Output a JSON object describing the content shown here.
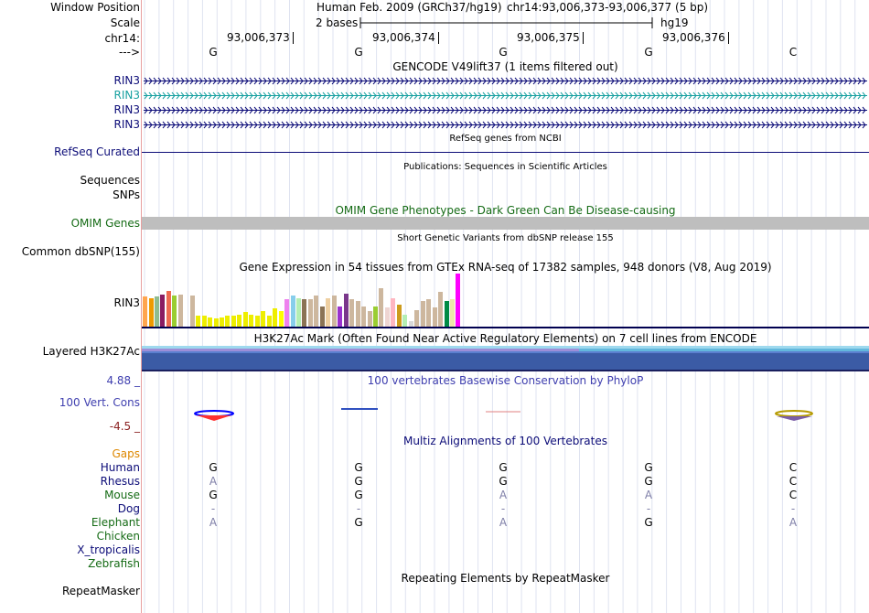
{
  "header": {
    "window_position_label": "Window Position",
    "scale_label": "Scale",
    "chrom_label": "chr14:",
    "strand_label": "--->",
    "assembly": "Human Feb. 2009 (GRCh37/hg19)",
    "position": "chr14:93,006,373-93,006,377 (5 bp)",
    "scale_text": "2 bases",
    "db": "hg19",
    "coords": [
      "93,006,373",
      "93,006,374",
      "93,006,375",
      "93,006,376"
    ],
    "bases": [
      "G",
      "G",
      "G",
      "G",
      "C"
    ]
  },
  "gencode": {
    "title": "GENCODE V49lift37 (1 items filtered out)",
    "items": [
      "RIN3",
      "RIN3",
      "RIN3",
      "RIN3"
    ],
    "item_colors": [
      "#0c0c78",
      "#17a0a0",
      "#0c0c78",
      "#0c0c78"
    ]
  },
  "refseq": {
    "title": "RefSeq genes from NCBI",
    "label": "RefSeq Curated"
  },
  "publications": {
    "title": "Publications: Sequences in Scientific Articles",
    "label1": "Sequences",
    "label2": "SNPs"
  },
  "omim": {
    "title": "OMIM Gene Phenotypes - Dark Green Can Be Disease-causing",
    "label": "OMIM Genes"
  },
  "dbsnp": {
    "title": "Short Genetic Variants from dbSNP release 155",
    "label": "Common dbSNP(155)"
  },
  "gtex": {
    "title": "Gene Expression in 54 tissues from GTEx RNA-seq of 17382 samples, 948 donors (V8, Aug 2019)",
    "label": "RIN3",
    "values": [
      32,
      30,
      32,
      34,
      38,
      33,
      34,
      0,
      33,
      12,
      12,
      10,
      9,
      10,
      12,
      12,
      13,
      16,
      13,
      12,
      17,
      12,
      20,
      17,
      29,
      33,
      30,
      29,
      29,
      33,
      22,
      30,
      33,
      22,
      35,
      29,
      28,
      22,
      17,
      22,
      41,
      21,
      30,
      24,
      13,
      6,
      18,
      28,
      29,
      21,
      37,
      28,
      29,
      57
    ],
    "colors": [
      "#ffa54f",
      "#ee9a00",
      "#8fbc8f",
      "#8b1c62",
      "#ee6a50",
      "#9acd32",
      "#cdb79e",
      "#cdb79e",
      "#cdb79e",
      "#eeee00",
      "#eeee00",
      "#eeee00",
      "#eeee00",
      "#eeee00",
      "#eeee00",
      "#eeee00",
      "#eeee00",
      "#eeee00",
      "#eeee00",
      "#eeee00",
      "#eeee00",
      "#eeee00",
      "#eeee00",
      "#ffff00",
      "#ee82ee",
      "#87ceeb",
      "#b4eeb4",
      "#8b7355",
      "#cdb79e",
      "#cdb79e",
      "#8b7355",
      "#eecfa1",
      "#cdb79e",
      "#9a32cd",
      "#7a378b",
      "#cdb79e",
      "#cdb79e",
      "#cdb79e",
      "#cdb79e",
      "#9acd32",
      "#cdb79e",
      "#eed5d2",
      "#ffb6c1",
      "#cd9b1d",
      "#b4eeb4",
      "#d9d9d9",
      "#cdb79e",
      "#cdb79e",
      "#cdb79e",
      "#cdb79e",
      "#cdb79e",
      "#008b45",
      "#eee8aa",
      "#ff00ff"
    ]
  },
  "h3k27ac": {
    "title": "H3K27Ac Mark (Often Found Near Active Regulatory Elements) on 7 cell lines from ENCODE",
    "label": "Layered H3K27Ac"
  },
  "phylop": {
    "title": "100 vertebrates Basewise Conservation by PhyloP",
    "label": "100 Vert. Cons",
    "max": "4.88 _",
    "min": "-4.5 _"
  },
  "multiz": {
    "title": "Multiz Alignments of 100 Vertebrates",
    "species": [
      {
        "name": "Gaps",
        "color": "#dd8800",
        "bases": [
          "",
          "",
          "",
          "",
          ""
        ]
      },
      {
        "name": "Human",
        "color": "#0c0c78",
        "bases": [
          "G",
          "G",
          "G",
          "G",
          "C"
        ]
      },
      {
        "name": "Rhesus",
        "color": "#0c0c78",
        "bases": [
          "A",
          "G",
          "G",
          "G",
          "C"
        ]
      },
      {
        "name": "Mouse",
        "color": "#156b15",
        "bases": [
          "G",
          "G",
          "A",
          "A",
          "C"
        ]
      },
      {
        "name": "Dog",
        "color": "#0c0c78",
        "bases": [
          "-",
          "-",
          "-",
          "-",
          "-"
        ]
      },
      {
        "name": "Elephant",
        "color": "#156b15",
        "bases": [
          "A",
          "G",
          "A",
          "G",
          "A"
        ]
      },
      {
        "name": "Chicken",
        "color": "#156b15",
        "bases": [
          "",
          "",
          "",
          "",
          ""
        ]
      },
      {
        "name": "X_tropicalis",
        "color": "#0c0c78",
        "bases": [
          "",
          "",
          "",
          "",
          ""
        ]
      },
      {
        "name": "Zebrafish",
        "color": "#156b15",
        "bases": [
          "",
          "",
          "",
          "",
          ""
        ]
      }
    ],
    "match_bases": [
      [
        false,
        false,
        false,
        false,
        false
      ],
      [
        true,
        true,
        true,
        true,
        true
      ],
      [
        false,
        true,
        true,
        true,
        true
      ],
      [
        true,
        true,
        false,
        false,
        true
      ],
      [
        false,
        false,
        false,
        false,
        false
      ],
      [
        false,
        true,
        false,
        true,
        false
      ],
      [
        false,
        false,
        false,
        false,
        false
      ],
      [
        false,
        false,
        false,
        false,
        false
      ],
      [
        false,
        false,
        false,
        false,
        false
      ]
    ]
  },
  "repeatmasker": {
    "title": "Repeating Elements by RepeatMasker",
    "label": "RepeatMasker"
  }
}
